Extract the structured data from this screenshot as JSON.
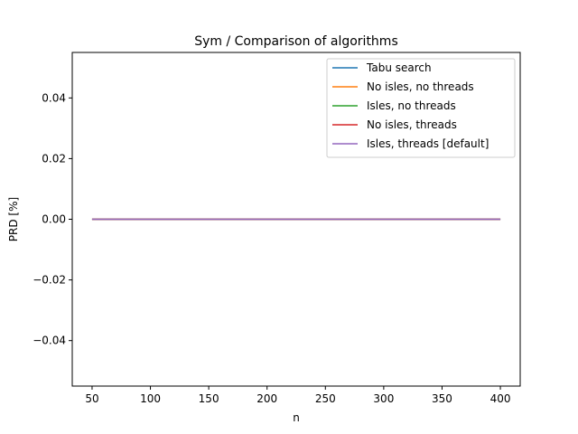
{
  "chart_data": {
    "type": "line",
    "title": "Sym / Comparison of algorithms",
    "xlabel": "n",
    "ylabel": "PRD [%]",
    "xlim": [
      33,
      417
    ],
    "ylim": [
      -0.055,
      0.055
    ],
    "xticks": [
      50,
      100,
      150,
      200,
      250,
      300,
      350,
      400
    ],
    "yticks": [
      -0.04,
      -0.02,
      0.0,
      0.02,
      0.04
    ],
    "ytick_labels": [
      "−0.04",
      "−0.02",
      "0.00",
      "0.02",
      "0.04"
    ],
    "x": [
      50,
      100,
      150,
      200,
      250,
      300,
      350,
      400
    ],
    "series": [
      {
        "name": "Tabu search",
        "color": "#1f77b4",
        "values": [
          0,
          0,
          0,
          0,
          0,
          0,
          0,
          0
        ]
      },
      {
        "name": "No isles, no threads",
        "color": "#ff7f0e",
        "values": [
          0,
          0,
          0,
          0,
          0,
          0,
          0,
          0
        ]
      },
      {
        "name": "Isles, no threads",
        "color": "#2ca02c",
        "values": [
          0,
          0,
          0,
          0,
          0,
          0,
          0,
          0
        ]
      },
      {
        "name": "No isles, threads",
        "color": "#d62728",
        "values": [
          0,
          0,
          0,
          0,
          0,
          0,
          0,
          0
        ]
      },
      {
        "name": "Isles, threads [default]",
        "color": "#9467bd",
        "values": [
          0,
          0,
          0,
          0,
          0,
          0,
          0,
          0
        ]
      }
    ],
    "legend_position": "top-right",
    "grid": false
  }
}
